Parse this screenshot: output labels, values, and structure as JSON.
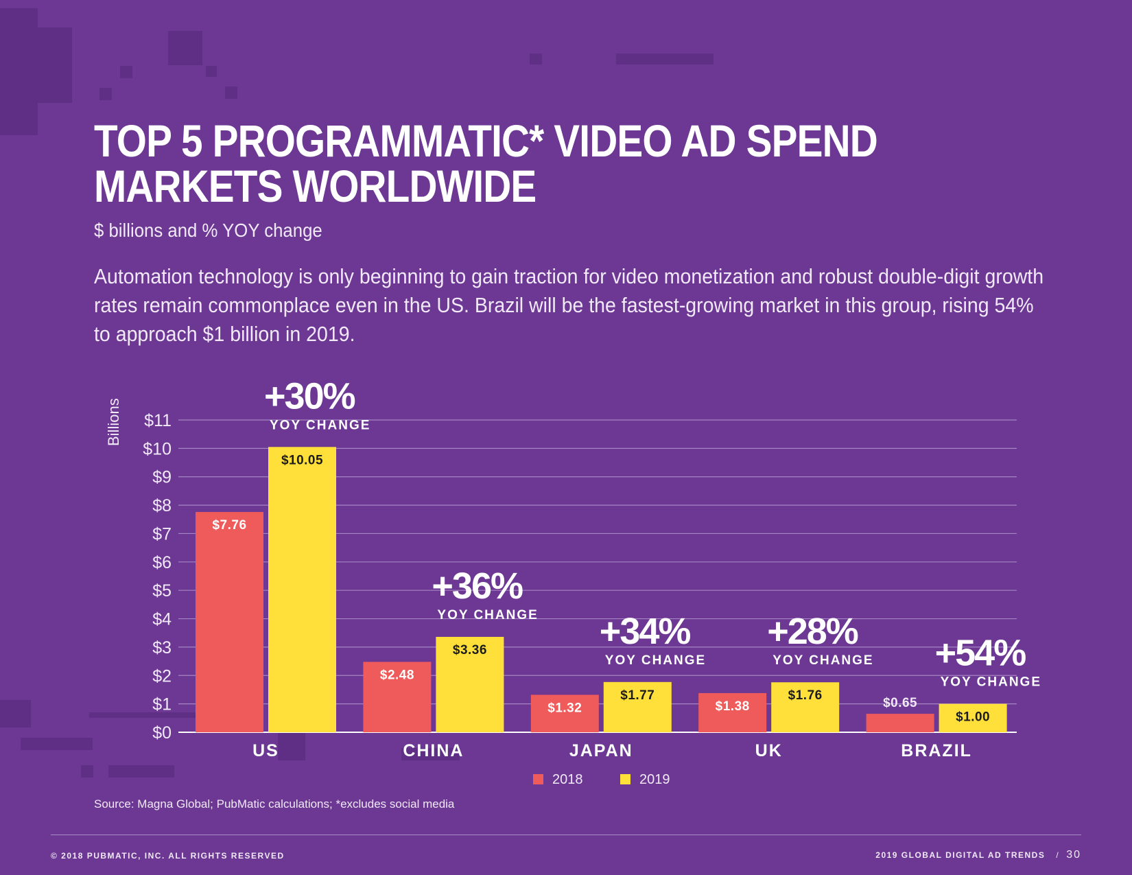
{
  "title_line1": "TOP 5 PROGRAMMATIC* VIDEO AD SPEND",
  "title_line2": "MARKETS WORLDWIDE",
  "subtitle": "$ billions and % YOY change",
  "description": "Automation technology is only beginning to gain traction for video monetization and robust double-digit growth rates remain commonplace even in the US. Brazil will be the fastest-growing market in this group, rising 54% to approach $1 billion in 2019.",
  "source": "Source: Magna Global; PubMatic calculations; *excludes social media",
  "footer": {
    "copyright": "© 2018 PUBMATIC, INC. ALL RIGHTS RESERVED",
    "report": "2019 GLOBAL DIGITAL AD TRENDS",
    "separator": "/",
    "page": "30"
  },
  "colors": {
    "background": "#6c3893",
    "series_2018": "#ef5b5b",
    "series_2019": "#ffe03a"
  },
  "chart_data": {
    "type": "bar",
    "ylabel": "Billions",
    "ylim": [
      0,
      11
    ],
    "yticks": [
      "$0",
      "$1",
      "$2",
      "$3",
      "$4",
      "$5",
      "$6",
      "$7",
      "$8",
      "$9",
      "$10",
      "$11"
    ],
    "categories": [
      "US",
      "CHINA",
      "JAPAN",
      "UK",
      "BRAZIL"
    ],
    "series": [
      {
        "name": "2018",
        "values": [
          7.76,
          2.48,
          1.32,
          1.38,
          0.65
        ],
        "labels": [
          "$7.76",
          "$2.48",
          "$1.32",
          "$1.38",
          "$0.65"
        ]
      },
      {
        "name": "2019",
        "values": [
          10.05,
          3.36,
          1.77,
          1.76,
          1.0
        ],
        "labels": [
          "$10.05",
          "$3.36",
          "$1.77",
          "$1.76",
          "$1.00"
        ]
      }
    ],
    "annotations": [
      "+30%",
      "+36%",
      "+34%",
      "+28%",
      "+54%"
    ],
    "annotation_sublabel": "YOY CHANGE",
    "grid": true,
    "legend": "bottom-center"
  }
}
